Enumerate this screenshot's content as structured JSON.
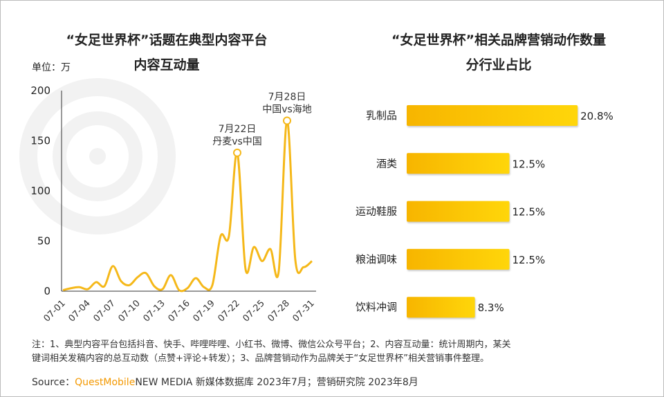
{
  "chart_data": [
    {
      "type": "line",
      "title": "“女足世界杯”话题在典型内容平台内容互动量",
      "title_lines": [
        "“女足世界杯”话题在典型内容平台",
        "内容互动量"
      ],
      "unit_label": "单位：万",
      "x": [
        "07-01",
        "07-02",
        "07-03",
        "07-04",
        "07-05",
        "07-06",
        "07-07",
        "07-08",
        "07-09",
        "07-10",
        "07-11",
        "07-12",
        "07-13",
        "07-14",
        "07-15",
        "07-16",
        "07-17",
        "07-18",
        "07-19",
        "07-20",
        "07-21",
        "07-22",
        "07-23",
        "07-24",
        "07-25",
        "07-26",
        "07-27",
        "07-28",
        "07-29",
        "07-30",
        "07-31"
      ],
      "values": [
        1,
        3,
        4,
        2,
        9,
        5,
        25,
        10,
        6,
        14,
        18,
        5,
        2,
        16,
        1,
        3,
        13,
        4,
        6,
        55,
        55,
        138,
        22,
        44,
        30,
        42,
        20,
        170,
        31,
        24,
        30
      ],
      "x_tick_labels": [
        "07-01",
        "07-04",
        "07-07",
        "07-10",
        "07-13",
        "07-16",
        "07-19",
        "07-22",
        "07-25",
        "07-28",
        "07-31"
      ],
      "y_ticks": [
        0,
        50,
        100,
        150,
        200
      ],
      "ylim": [
        0,
        200
      ],
      "color": "#f5b819",
      "annotations": [
        {
          "x": "07-22",
          "lines": [
            "7月22日",
            "丹麦vs中国"
          ]
        },
        {
          "x": "07-28",
          "lines": [
            "7月28日",
            "中国vs海地"
          ]
        }
      ]
    },
    {
      "type": "bar",
      "orientation": "horizontal",
      "title": "“女足世界杯”相关品牌营销动作数量分行业占比",
      "title_lines": [
        "“女足世界杯”相关品牌营销动作数量",
        "分行业占比"
      ],
      "categories": [
        "乳制品",
        "酒类",
        "运动鞋服",
        "粮油调味",
        "饮料冲调"
      ],
      "values": [
        20.8,
        12.5,
        12.5,
        12.5,
        8.3
      ],
      "labels": [
        "20.8%",
        "12.5%",
        "12.5%",
        "12.5%",
        "8.3%"
      ],
      "color": "#fbc30a"
    }
  ],
  "notes": [
    "注：1、典型内容平台包括抖音、快手、哔哩哔哩、小红书、微博、微信公众号平台；2、内容互动量：统计周期内，某关",
    "键词相关发稿内容的总互动数（点赞+评论+转发）；3、品牌营销动作为品牌关于“女足世界杯”相关营销事件整理。"
  ],
  "source": {
    "prefix": "Source：",
    "brand": "QuestMobile",
    "rest": "NEW MEDIA 新媒体数据库 2023年7月；营销研究院 2023年8月",
    "brand_color": "#f39800"
  },
  "watermark": "QUESTMOBILE"
}
